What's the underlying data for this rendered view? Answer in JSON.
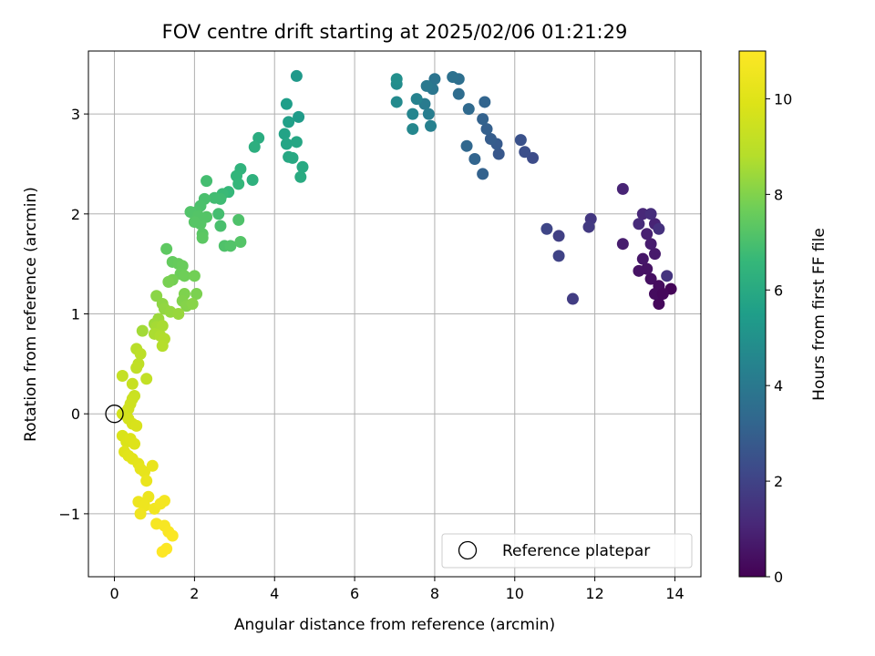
{
  "chart_data": {
    "type": "scatter",
    "title": "FOV centre drift starting at 2025/02/06 01:21:29",
    "xlabel": "Angular distance from reference (arcmin)",
    "ylabel": "Rotation from reference (arcmin)",
    "colorbar_label": "Hours from first FF file",
    "xlim": [
      -0.65,
      14.65
    ],
    "ylim": [
      -1.63,
      3.63
    ],
    "xticks": [
      0,
      2,
      4,
      6,
      8,
      10,
      12,
      14
    ],
    "yticks": [
      -1,
      0,
      1,
      2,
      3
    ],
    "colorbar_range": [
      0,
      11
    ],
    "colorbar_ticks": [
      0,
      2,
      4,
      6,
      8,
      10
    ],
    "colormap": "viridis",
    "grid": true,
    "legend_position": "lower-right",
    "reference": {
      "name": "Reference platepar",
      "x": 0,
      "y": 0
    },
    "points": [
      [
        13.9,
        1.25,
        0.1
      ],
      [
        13.6,
        1.1,
        0.2
      ],
      [
        13.5,
        1.2,
        0.3
      ],
      [
        13.4,
        1.35,
        0.4
      ],
      [
        13.3,
        1.45,
        0.5
      ],
      [
        13.2,
        1.55,
        0.6
      ],
      [
        13.5,
        1.6,
        0.7
      ],
      [
        13.4,
        1.7,
        0.8
      ],
      [
        13.3,
        1.8,
        0.9
      ],
      [
        13.5,
        1.9,
        1.0
      ],
      [
        13.2,
        2.0,
        1.1
      ],
      [
        13.1,
        1.9,
        1.2
      ],
      [
        13.4,
        2.0,
        1.3
      ],
      [
        13.6,
        1.85,
        1.4
      ],
      [
        13.8,
        1.38,
        1.5
      ],
      [
        12.7,
        1.7,
        0.8
      ],
      [
        12.7,
        2.25,
        1.0
      ],
      [
        13.1,
        1.43,
        0.5
      ],
      [
        13.6,
        1.28,
        0.3
      ],
      [
        13.7,
        1.2,
        0.2
      ],
      [
        11.9,
        1.95,
        1.6
      ],
      [
        11.85,
        1.87,
        1.7
      ],
      [
        11.45,
        1.15,
        1.8
      ],
      [
        11.1,
        1.78,
        1.9
      ],
      [
        11.1,
        1.58,
        2.0
      ],
      [
        10.8,
        1.85,
        2.1
      ],
      [
        10.45,
        2.56,
        2.3
      ],
      [
        10.25,
        2.62,
        2.4
      ],
      [
        10.15,
        2.74,
        2.5
      ],
      [
        9.6,
        2.6,
        2.7
      ],
      [
        9.55,
        2.7,
        2.8
      ],
      [
        9.4,
        2.75,
        2.9
      ],
      [
        9.3,
        2.85,
        3.0
      ],
      [
        9.2,
        2.95,
        3.1
      ],
      [
        9.25,
        3.12,
        3.2
      ],
      [
        9.2,
        2.4,
        3.1
      ],
      [
        9.0,
        2.55,
        3.2
      ],
      [
        8.8,
        2.68,
        3.3
      ],
      [
        8.85,
        3.05,
        3.4
      ],
      [
        8.6,
        3.2,
        3.5
      ],
      [
        8.6,
        3.35,
        3.6
      ],
      [
        8.45,
        3.37,
        3.7
      ],
      [
        8.0,
        3.35,
        3.8
      ],
      [
        7.95,
        3.25,
        3.9
      ],
      [
        7.8,
        3.28,
        4.0
      ],
      [
        7.75,
        3.1,
        4.1
      ],
      [
        7.85,
        3.0,
        4.2
      ],
      [
        7.9,
        2.88,
        4.3
      ],
      [
        7.55,
        3.15,
        4.4
      ],
      [
        7.45,
        3.0,
        4.5
      ],
      [
        7.45,
        2.85,
        4.6
      ],
      [
        7.05,
        3.12,
        4.7
      ],
      [
        7.05,
        3.3,
        4.8
      ],
      [
        7.05,
        3.35,
        4.9
      ],
      [
        4.55,
        3.38,
        5.3
      ],
      [
        4.6,
        2.97,
        5.4
      ],
      [
        4.3,
        3.1,
        5.5
      ],
      [
        4.35,
        2.92,
        5.6
      ],
      [
        4.25,
        2.8,
        5.7
      ],
      [
        4.3,
        2.7,
        5.8
      ],
      [
        4.55,
        2.72,
        5.85
      ],
      [
        4.35,
        2.57,
        5.9
      ],
      [
        4.45,
        2.56,
        5.95
      ],
      [
        4.7,
        2.47,
        6.0
      ],
      [
        4.65,
        2.37,
        6.05
      ],
      [
        3.6,
        2.76,
        6.1
      ],
      [
        3.5,
        2.67,
        6.2
      ],
      [
        3.45,
        2.34,
        6.3
      ],
      [
        3.15,
        2.45,
        6.4
      ],
      [
        3.05,
        2.38,
        6.5
      ],
      [
        3.1,
        2.3,
        6.55
      ],
      [
        2.85,
        2.22,
        6.6
      ],
      [
        2.7,
        2.2,
        6.7
      ],
      [
        2.65,
        2.15,
        6.8
      ],
      [
        2.5,
        2.16,
        6.85
      ],
      [
        2.3,
        2.33,
        6.9
      ],
      [
        2.25,
        2.15,
        7.0
      ],
      [
        2.15,
        2.08,
        7.05
      ],
      [
        2.05,
        2.02,
        7.1
      ],
      [
        1.9,
        2.02,
        7.15
      ],
      [
        2.3,
        1.97,
        7.2
      ],
      [
        2.15,
        1.9,
        7.25
      ],
      [
        2.2,
        1.8,
        7.3
      ],
      [
        2.2,
        1.76,
        7.35
      ],
      [
        2.6,
        2.0,
        6.9
      ],
      [
        2.65,
        1.88,
        7.0
      ],
      [
        2.75,
        1.68,
        7.1
      ],
      [
        2.9,
        1.68,
        7.15
      ],
      [
        3.15,
        1.72,
        7.2
      ],
      [
        3.1,
        1.94,
        7.1
      ],
      [
        2.1,
        1.98,
        7.2
      ],
      [
        2.0,
        1.92,
        7.25
      ],
      [
        1.3,
        1.65,
        7.4
      ],
      [
        1.45,
        1.52,
        7.5
      ],
      [
        1.6,
        1.5,
        7.55
      ],
      [
        1.7,
        1.48,
        7.6
      ],
      [
        1.65,
        1.4,
        7.65
      ],
      [
        1.75,
        1.38,
        7.7
      ],
      [
        2.0,
        1.38,
        7.75
      ],
      [
        1.45,
        1.34,
        7.8
      ],
      [
        1.35,
        1.32,
        7.85
      ],
      [
        2.05,
        1.2,
        7.9
      ],
      [
        1.75,
        1.2,
        7.95
      ],
      [
        1.7,
        1.13,
        8.0
      ],
      [
        1.8,
        1.08,
        8.05
      ],
      [
        1.95,
        1.1,
        8.1
      ],
      [
        1.05,
        1.18,
        8.15
      ],
      [
        1.2,
        1.1,
        8.2
      ],
      [
        1.25,
        1.05,
        8.25
      ],
      [
        1.4,
        1.02,
        8.3
      ],
      [
        1.6,
        1.0,
        8.35
      ],
      [
        1.1,
        0.95,
        8.4
      ],
      [
        1.0,
        0.9,
        8.45
      ],
      [
        0.7,
        0.83,
        8.5
      ],
      [
        1.05,
        0.87,
        8.55
      ],
      [
        1.2,
        0.88,
        8.6
      ],
      [
        1.0,
        0.8,
        8.65
      ],
      [
        1.15,
        0.78,
        8.7
      ],
      [
        1.25,
        0.75,
        8.75
      ],
      [
        1.2,
        0.68,
        8.8
      ],
      [
        0.55,
        0.65,
        8.9
      ],
      [
        0.65,
        0.6,
        9.0
      ],
      [
        0.6,
        0.5,
        9.05
      ],
      [
        0.55,
        0.46,
        9.1
      ],
      [
        0.8,
        0.35,
        9.15
      ],
      [
        0.2,
        0.38,
        9.2
      ],
      [
        0.45,
        0.3,
        9.3
      ],
      [
        0.5,
        0.18,
        9.35
      ],
      [
        0.45,
        0.15,
        9.4
      ],
      [
        0.4,
        0.1,
        9.45
      ],
      [
        0.35,
        0.05,
        9.5
      ],
      [
        0.3,
        0.02,
        9.55
      ],
      [
        0.2,
        0.0,
        9.6
      ],
      [
        0.35,
        -0.05,
        9.65
      ],
      [
        0.45,
        -0.1,
        9.7
      ],
      [
        0.55,
        -0.12,
        9.75
      ],
      [
        0.2,
        -0.22,
        9.8
      ],
      [
        0.3,
        -0.28,
        9.85
      ],
      [
        0.4,
        -0.25,
        9.9
      ],
      [
        0.5,
        -0.3,
        9.95
      ],
      [
        0.25,
        -0.38,
        10.0
      ],
      [
        0.35,
        -0.42,
        10.05
      ],
      [
        0.45,
        -0.45,
        10.1
      ],
      [
        0.6,
        -0.5,
        10.15
      ],
      [
        0.65,
        -0.55,
        10.2
      ],
      [
        0.75,
        -0.58,
        10.25
      ],
      [
        0.95,
        -0.52,
        10.3
      ],
      [
        0.8,
        -0.67,
        10.35
      ],
      [
        0.85,
        -0.83,
        10.4
      ],
      [
        0.6,
        -0.88,
        10.45
      ],
      [
        0.75,
        -0.92,
        10.5
      ],
      [
        0.65,
        -1.0,
        10.55
      ],
      [
        1.0,
        -0.95,
        10.6
      ],
      [
        1.15,
        -0.9,
        10.65
      ],
      [
        1.25,
        -0.87,
        10.7
      ],
      [
        1.05,
        -1.1,
        10.75
      ],
      [
        1.25,
        -1.12,
        10.8
      ],
      [
        1.35,
        -1.18,
        10.85
      ],
      [
        1.45,
        -1.22,
        10.9
      ],
      [
        1.3,
        -1.35,
        10.95
      ],
      [
        1.2,
        -1.38,
        11.0
      ]
    ]
  }
}
